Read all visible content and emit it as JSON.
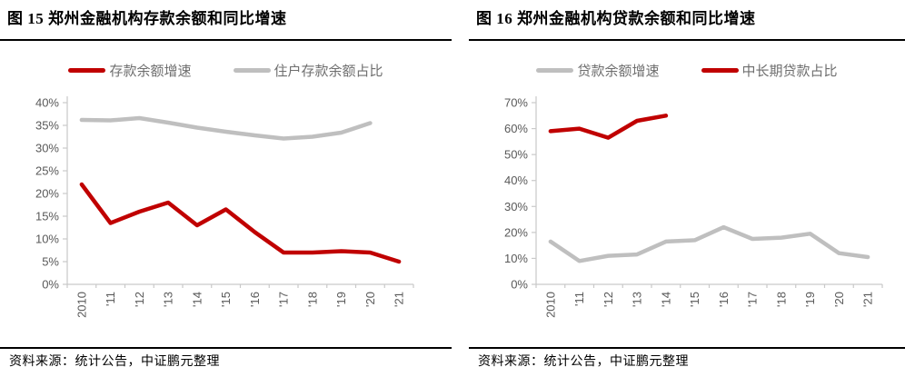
{
  "page": {
    "background": "#ffffff"
  },
  "colors": {
    "accent_red": "#C00000",
    "series_gray": "#BFBFBF",
    "axis_line": "#C9C9C9",
    "tick_text": "#595959"
  },
  "source_note": "资料来源：统计公告，中证鹏元整理",
  "chart_data": [
    {
      "type": "line",
      "title": "图 15 郑州金融机构存款余额和同比增速",
      "categories": [
        "2010",
        "'11",
        "'12",
        "'13",
        "'14",
        "'15",
        "'16",
        "'17",
        "'18",
        "'19",
        "'20",
        "'21"
      ],
      "series": [
        {
          "name": "存款余额增速",
          "color": "#C00000",
          "values": [
            22,
            13.5,
            16,
            18,
            13,
            16.5,
            11.5,
            7,
            7,
            7.3,
            7,
            5
          ]
        },
        {
          "name": "住户存款余额占比",
          "color": "#BFBFBF",
          "values": [
            36.2,
            36.1,
            36.6,
            35.6,
            34.5,
            33.6,
            32.8,
            32.1,
            32.5,
            33.4,
            35.5,
            null
          ]
        }
      ],
      "ylim": [
        0,
        40
      ],
      "ystep": 5,
      "ytick_format": "percent",
      "grid": false,
      "legend_position": "top"
    },
    {
      "type": "line",
      "title": "图 16 郑州金融机构贷款余额和同比增速",
      "categories": [
        "2010",
        "'11",
        "'12",
        "'13",
        "'14",
        "'15",
        "'16",
        "'17",
        "'18",
        "'19",
        "'20",
        "'21"
      ],
      "series": [
        {
          "name": "贷款余额增速",
          "color": "#BFBFBF",
          "values": [
            16.5,
            9,
            11,
            11.5,
            16.5,
            17,
            22,
            17.5,
            18,
            19.5,
            12,
            10.5
          ]
        },
        {
          "name": "中长期贷款占比",
          "color": "#C00000",
          "values": [
            59,
            60,
            56.5,
            63,
            65,
            null,
            null,
            null,
            null,
            null,
            null,
            null
          ]
        }
      ],
      "ylim": [
        0,
        70
      ],
      "ystep": 10,
      "ytick_format": "percent",
      "grid": false,
      "legend_position": "top"
    }
  ]
}
